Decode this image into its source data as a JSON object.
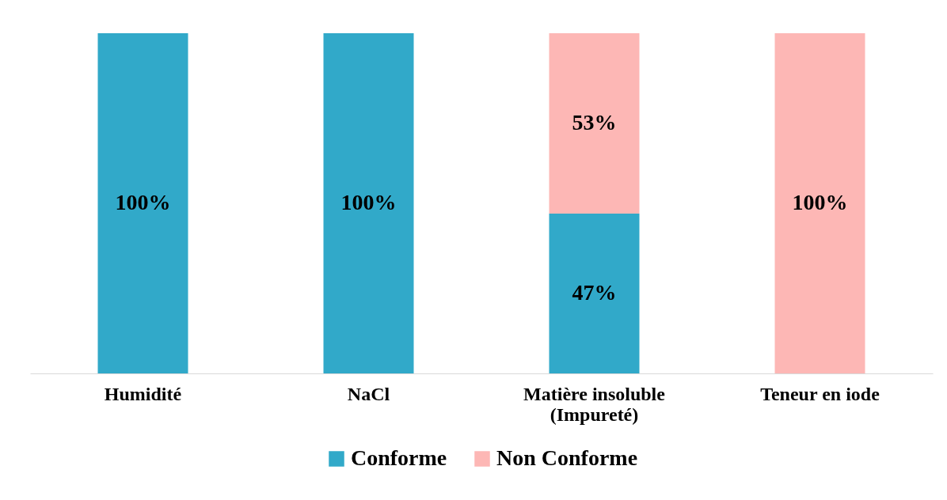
{
  "chart_data": {
    "type": "bar",
    "stacked": true,
    "categories": [
      "Humidité",
      "NaCl",
      "Matière insoluble\n(Impureté)",
      "Teneur en iode"
    ],
    "series": [
      {
        "name": "Conforme",
        "color": "#31a9c9",
        "values": [
          100,
          100,
          47,
          0
        ],
        "value_labels": [
          "100%",
          "100%",
          "47%",
          null
        ]
      },
      {
        "name": "Non Conforme",
        "color": "#fdb7b5",
        "values": [
          0,
          0,
          53,
          100
        ],
        "value_labels": [
          null,
          null,
          "53%",
          "100%"
        ]
      }
    ],
    "legend": "bottom"
  }
}
